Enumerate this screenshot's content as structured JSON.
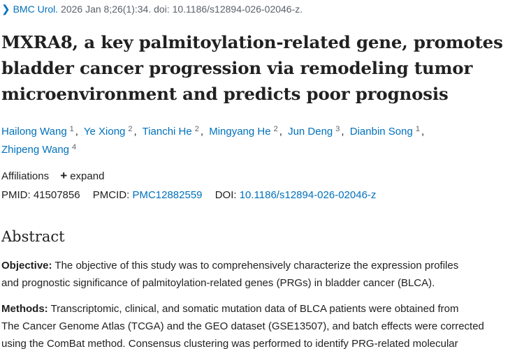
{
  "citation": {
    "journal": "BMC Urol.",
    "details": "2026 Jan 8;26(1):34. doi: 10.1186/s12894-026-02046-z."
  },
  "title_lines": [
    "MXRA8, a key palmitoylation-related gene, promotes",
    "bladder cancer progression via remodeling tumor",
    "microenvironment and predicts poor prognosis"
  ],
  "authors": [
    {
      "name": "Hailong Wang",
      "aff": "1"
    },
    {
      "name": "Ye Xiong",
      "aff": "2"
    },
    {
      "name": "Tianchi He",
      "aff": "2"
    },
    {
      "name": "Mingyang He",
      "aff": "2"
    },
    {
      "name": "Jun Deng",
      "aff": "3"
    },
    {
      "name": "Dianbin Song",
      "aff": "1"
    },
    {
      "name": "Zhipeng Wang",
      "aff": "4"
    }
  ],
  "affiliations": {
    "label": "Affiliations",
    "expand_label": "expand"
  },
  "ids": {
    "pmid_label": "PMID:",
    "pmid": "41507856",
    "pmcid_label": "PMCID:",
    "pmcid": "PMC12882559",
    "doi_label": "DOI:",
    "doi": "10.1186/s12894-026-02046-z"
  },
  "abstract": {
    "heading": "Abstract",
    "objective_label": "Objective:",
    "objective_lines": [
      " The objective of this study was to comprehensively characterize the expression profiles",
      "and prognostic significance of palmitoylation-related genes (PRGs) in bladder cancer (BLCA)."
    ],
    "methods_label": "Methods:",
    "methods_lines": [
      " Transcriptomic, clinical, and somatic mutation data of BLCA patients were obtained from",
      "The Cancer Genome Atlas (TCGA) and the GEO dataset (GSE13507), and batch effects were corrected",
      "using the ComBat method. Consensus clustering was performed to identify PRG-related molecular"
    ]
  }
}
